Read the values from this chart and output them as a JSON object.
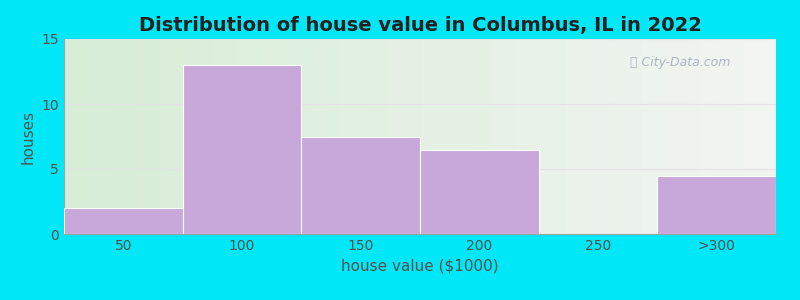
{
  "title": "Distribution of house value in Columbus, IL in 2022",
  "xlabel": "house value ($1000)",
  "ylabel": "houses",
  "categories": [
    "50",
    "100",
    "150",
    "200",
    "250",
    ">300"
  ],
  "values": [
    2,
    13,
    7.5,
    6.5,
    0,
    4.5
  ],
  "bar_color": "#c8a8d8",
  "ylim": [
    0,
    15
  ],
  "yticks": [
    0,
    5,
    10,
    15
  ],
  "background_outer": "#00e8f8",
  "title_fontsize": 14,
  "axis_label_fontsize": 11,
  "tick_fontsize": 10,
  "watermark_text": "City-Data.com"
}
